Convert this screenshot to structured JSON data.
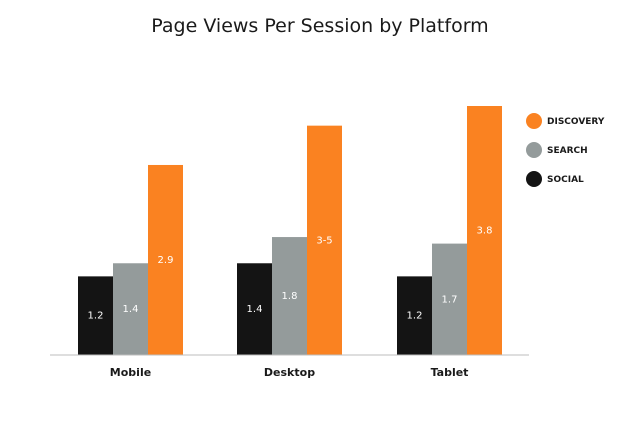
{
  "chart_data": {
    "type": "bar",
    "title": "Page Views Per Session by Platform",
    "categories": [
      "Mobile",
      "Desktop",
      "Tablet"
    ],
    "series": [
      {
        "name": "SOCIAL",
        "color": "#141414",
        "values": [
          1.2,
          1.4,
          1.2
        ],
        "labels": [
          "1.2",
          "1.4",
          "1.2"
        ]
      },
      {
        "name": "SEARCH",
        "color": "#949b9b",
        "values": [
          1.4,
          1.8,
          1.7
        ],
        "labels": [
          "1.4",
          "1.8",
          "1.7"
        ]
      },
      {
        "name": "DISCOVERY",
        "color": "#fa8221",
        "values": [
          2.9,
          3.5,
          3.8
        ],
        "labels": [
          "2.9",
          "3-5",
          "3.8"
        ]
      }
    ],
    "legend_order": [
      "DISCOVERY",
      "SEARCH",
      "SOCIAL"
    ],
    "legend_position": "right",
    "ylim": [
      0,
      3.8
    ],
    "grid": false
  }
}
